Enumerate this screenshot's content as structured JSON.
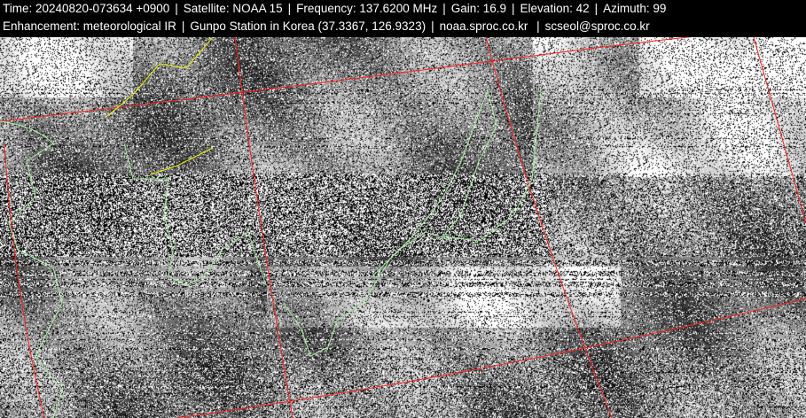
{
  "header": {
    "line1": [
      "Time: 20240820-073634 +0900",
      "Satellite: NOAA 15",
      "Frequency: 137.6200 MHz",
      "Gain: 16.9",
      "Elevation: 42",
      "Azimuth: 99"
    ],
    "line2": [
      "Enhancement: meteorological IR",
      "Gunpo Station in Korea (37.3367, 126.9323)",
      "noaa.sproc.co.kr",
      "scseol@sproc.co.kr"
    ]
  },
  "image": {
    "type": "NOAA APT satellite image",
    "colors": {
      "grid": "#ff2020",
      "coastline": "#a8f0a0",
      "border": "#f0f000"
    }
  }
}
